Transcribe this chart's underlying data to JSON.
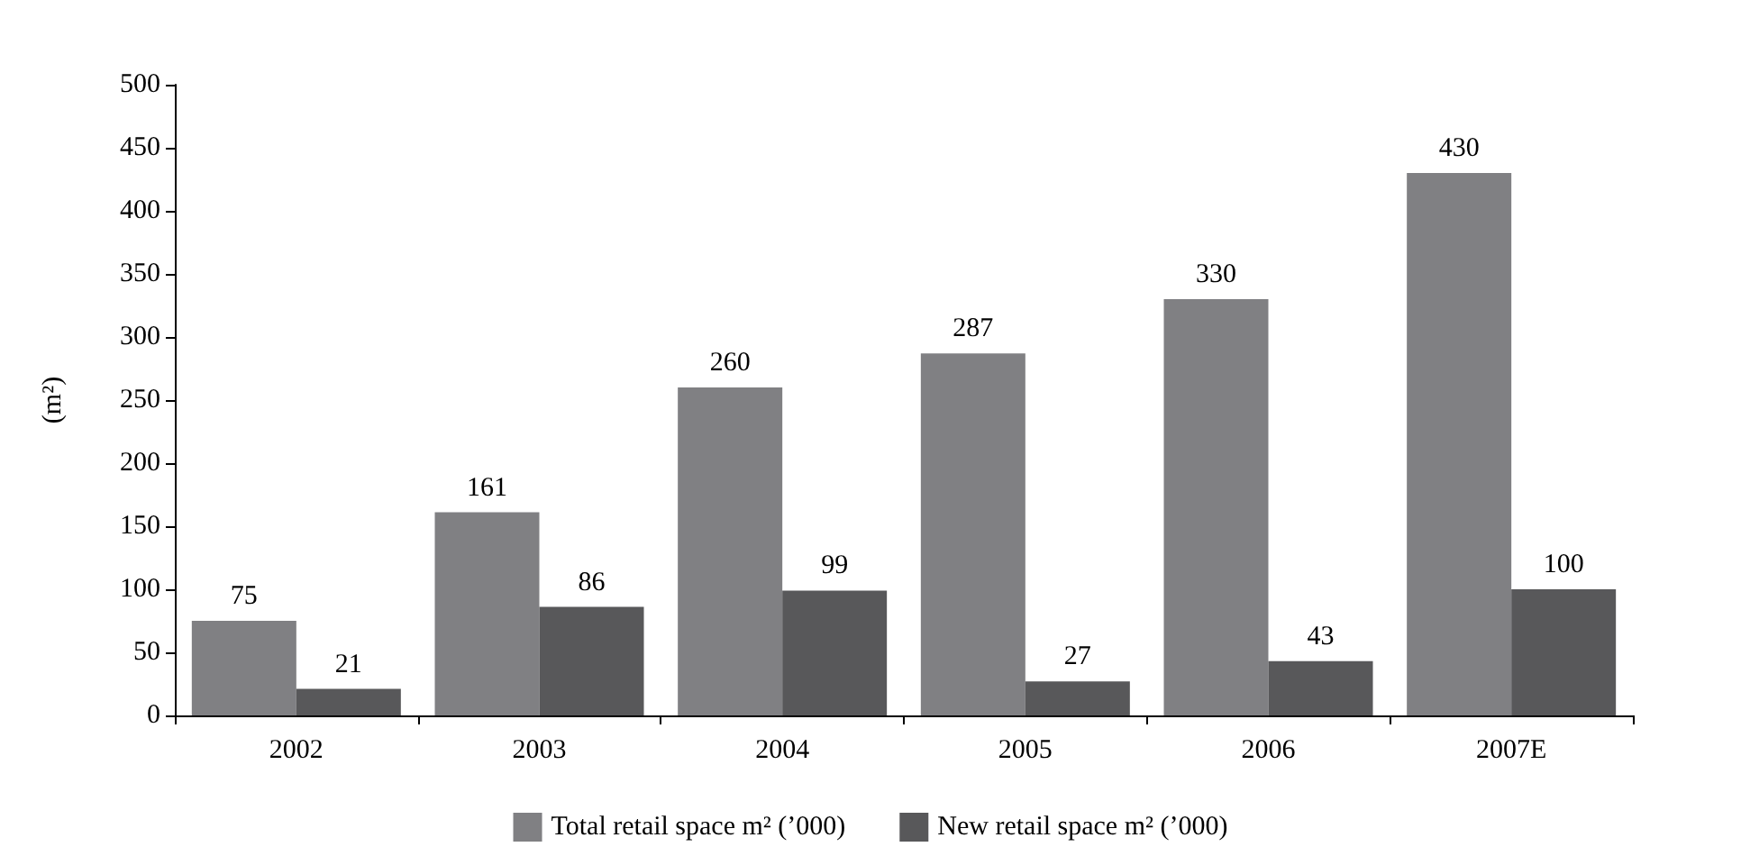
{
  "chart_data": {
    "type": "bar",
    "ylabel": "(m²)",
    "categories": [
      "2002",
      "2003",
      "2004",
      "2005",
      "2006",
      "2007E"
    ],
    "series": [
      {
        "name": "Total retail space m² (’000)",
        "color": "#808083",
        "values": [
          75,
          161,
          260,
          287,
          330,
          430
        ]
      },
      {
        "name": "New retail space m² (’000)",
        "color": "#58585a",
        "values": [
          21,
          86,
          99,
          27,
          43,
          100
        ]
      }
    ],
    "ylim": [
      0,
      500
    ],
    "yticks": [
      0,
      50,
      100,
      150,
      200,
      250,
      300,
      350,
      400,
      450,
      500
    ],
    "data_labels": true,
    "grid": false,
    "legend": "bottom"
  }
}
